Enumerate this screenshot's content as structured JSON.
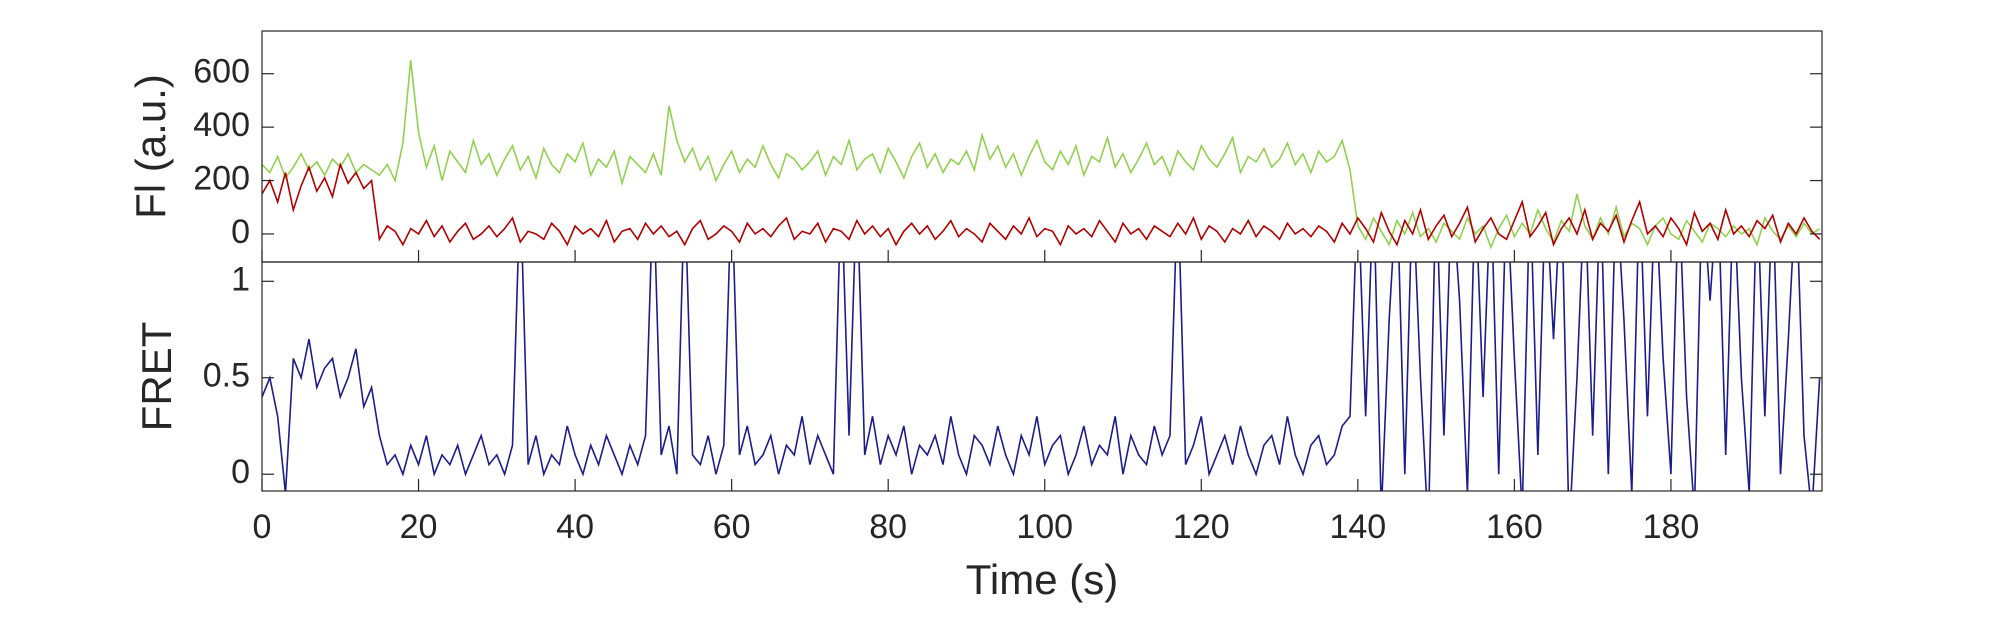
{
  "chart_data": [
    {
      "type": "line",
      "ylabel": "Fl (a.u.)",
      "x": [
        0,
        1,
        2,
        3,
        4,
        5,
        6,
        7,
        8,
        9,
        10,
        11,
        12,
        13,
        14,
        15,
        16,
        17,
        18,
        19,
        20,
        21,
        22,
        23,
        24,
        25,
        26,
        27,
        28,
        29,
        30,
        31,
        32,
        33,
        34,
        35,
        36,
        37,
        38,
        39,
        40,
        41,
        42,
        43,
        44,
        45,
        46,
        47,
        48,
        49,
        50,
        51,
        52,
        53,
        54,
        55,
        56,
        57,
        58,
        59,
        60,
        61,
        62,
        63,
        64,
        65,
        66,
        67,
        68,
        69,
        70,
        71,
        72,
        73,
        74,
        75,
        76,
        77,
        78,
        79,
        80,
        81,
        82,
        83,
        84,
        85,
        86,
        87,
        88,
        89,
        90,
        91,
        92,
        93,
        94,
        95,
        96,
        97,
        98,
        99,
        100,
        101,
        102,
        103,
        104,
        105,
        106,
        107,
        108,
        109,
        110,
        111,
        112,
        113,
        114,
        115,
        116,
        117,
        118,
        119,
        120,
        121,
        122,
        123,
        124,
        125,
        126,
        127,
        128,
        129,
        130,
        131,
        132,
        133,
        134,
        135,
        136,
        137,
        138,
        139,
        140,
        141,
        142,
        143,
        144,
        145,
        146,
        147,
        148,
        149,
        150,
        151,
        152,
        153,
        154,
        155,
        156,
        157,
        158,
        159,
        160,
        161,
        162,
        163,
        164,
        165,
        166,
        167,
        168,
        169,
        170,
        171,
        172,
        173,
        174,
        175,
        176,
        177,
        178,
        179,
        180,
        181,
        182,
        183,
        184,
        185,
        186,
        187,
        188,
        189,
        190,
        191,
        192,
        193,
        194,
        195,
        196,
        197,
        198,
        199
      ],
      "series": [
        {
          "color": "#92d050",
          "values": [
            260,
            230,
            290,
            210,
            250,
            300,
            240,
            270,
            220,
            280,
            250,
            300,
            230,
            260,
            240,
            220,
            260,
            200,
            340,
            650,
            380,
            250,
            330,
            200,
            310,
            270,
            230,
            350,
            260,
            300,
            220,
            280,
            330,
            240,
            290,
            210,
            320,
            260,
            230,
            300,
            270,
            340,
            220,
            280,
            250,
            310,
            190,
            290,
            260,
            230,
            300,
            220,
            480,
            350,
            270,
            320,
            240,
            290,
            200,
            260,
            310,
            230,
            280,
            250,
            330,
            260,
            210,
            300,
            280,
            240,
            270,
            310,
            220,
            290,
            260,
            350,
            240,
            280,
            300,
            230,
            320,
            270,
            210,
            290,
            340,
            250,
            300,
            230,
            280,
            260,
            310,
            240,
            370,
            280,
            330,
            250,
            300,
            220,
            290,
            350,
            270,
            240,
            310,
            260,
            330,
            220,
            290,
            270,
            360,
            250,
            300,
            230,
            280,
            340,
            260,
            290,
            220,
            310,
            270,
            240,
            330,
            280,
            250,
            300,
            360,
            230,
            290,
            270,
            320,
            250,
            280,
            340,
            260,
            300,
            230,
            310,
            270,
            290,
            350,
            240,
            30,
            -20,
            60,
            10,
            -40,
            50,
            0,
            80,
            -10,
            20,
            -30,
            40,
            10,
            -20,
            60,
            0,
            30,
            -50,
            20,
            70,
            -10,
            40,
            0,
            90,
            20,
            -30,
            50,
            10,
            150,
            30,
            -20,
            60,
            0,
            100,
            -10,
            40,
            20,
            -40,
            30,
            60,
            0,
            -20,
            50,
            10,
            -30,
            40,
            20,
            -10,
            30,
            0,
            20,
            -40,
            60,
            10,
            -20,
            30,
            -10,
            40,
            0,
            20
          ]
        },
        {
          "color": "#b00000",
          "values": [
            150,
            200,
            120,
            230,
            90,
            180,
            250,
            160,
            210,
            140,
            260,
            190,
            230,
            170,
            200,
            -20,
            30,
            10,
            -40,
            20,
            0,
            50,
            -10,
            30,
            -30,
            10,
            40,
            -20,
            0,
            30,
            -10,
            20,
            60,
            -30,
            10,
            0,
            -20,
            40,
            10,
            -40,
            30,
            0,
            20,
            -10,
            50,
            -30,
            10,
            20,
            -20,
            40,
            0,
            30,
            -10,
            10,
            -40,
            20,
            50,
            -20,
            0,
            30,
            10,
            -30,
            40,
            0,
            20,
            -10,
            30,
            60,
            -20,
            10,
            0,
            40,
            -30,
            20,
            10,
            -20,
            50,
            0,
            30,
            -10,
            20,
            -40,
            10,
            40,
            0,
            30,
            -20,
            10,
            50,
            -10,
            20,
            0,
            -30,
            40,
            10,
            -20,
            30,
            0,
            60,
            -10,
            20,
            10,
            -40,
            30,
            0,
            20,
            -10,
            50,
            10,
            -30,
            40,
            0,
            20,
            -20,
            30,
            10,
            -10,
            40,
            0,
            60,
            -20,
            30,
            10,
            -30,
            20,
            0,
            50,
            -10,
            30,
            10,
            -20,
            40,
            0,
            20,
            -10,
            30,
            10,
            -30,
            40,
            0,
            60,
            20,
            -30,
            80,
            10,
            -40,
            50,
            0,
            90,
            -20,
            30,
            70,
            -10,
            40,
            100,
            -30,
            20,
            60,
            0,
            -20,
            50,
            120,
            -10,
            30,
            80,
            -40,
            20,
            60,
            0,
            90,
            -20,
            40,
            10,
            70,
            -30,
            50,
            120,
            0,
            30,
            -10,
            60,
            20,
            -40,
            80,
            10,
            40,
            -20,
            90,
            0,
            30,
            -10,
            50,
            20,
            70,
            -30,
            40,
            0,
            60,
            10,
            -20
          ]
        }
      ],
      "xlim": [
        0,
        199.3
      ],
      "ylim": [
        -105,
        760
      ],
      "yticks": [
        0,
        200,
        400,
        600
      ]
    },
    {
      "type": "line",
      "ylabel": "FRET",
      "xlabel": "Time (s)",
      "x": [
        0,
        1,
        2,
        3,
        4,
        5,
        6,
        7,
        8,
        9,
        10,
        11,
        12,
        13,
        14,
        15,
        16,
        17,
        18,
        19,
        20,
        21,
        22,
        23,
        24,
        25,
        26,
        27,
        28,
        29,
        30,
        31,
        32,
        33,
        34,
        35,
        36,
        37,
        38,
        39,
        40,
        41,
        42,
        43,
        44,
        45,
        46,
        47,
        48,
        49,
        50,
        51,
        52,
        53,
        54,
        55,
        56,
        57,
        58,
        59,
        60,
        61,
        62,
        63,
        64,
        65,
        66,
        67,
        68,
        69,
        70,
        71,
        72,
        73,
        74,
        75,
        76,
        77,
        78,
        79,
        80,
        81,
        82,
        83,
        84,
        85,
        86,
        87,
        88,
        89,
        90,
        91,
        92,
        93,
        94,
        95,
        96,
        97,
        98,
        99,
        100,
        101,
        102,
        103,
        104,
        105,
        106,
        107,
        108,
        109,
        110,
        111,
        112,
        113,
        114,
        115,
        116,
        117,
        118,
        119,
        120,
        121,
        122,
        123,
        124,
        125,
        126,
        127,
        128,
        129,
        130,
        131,
        132,
        133,
        134,
        135,
        136,
        137,
        138,
        139,
        140,
        141,
        142,
        143,
        144,
        145,
        146,
        147,
        148,
        149,
        150,
        151,
        152,
        153,
        154,
        155,
        156,
        157,
        158,
        159,
        160,
        161,
        162,
        163,
        164,
        165,
        166,
        167,
        168,
        169,
        170,
        171,
        172,
        173,
        174,
        175,
        176,
        177,
        178,
        179,
        180,
        181,
        182,
        183,
        184,
        185,
        186,
        187,
        188,
        189,
        190,
        191,
        192,
        193,
        194,
        195,
        196,
        197,
        198,
        199
      ],
      "series": [
        {
          "color": "#1c1c8a",
          "values": [
            0.4,
            0.5,
            0.3,
            -0.1,
            0.6,
            0.5,
            0.7,
            0.45,
            0.55,
            0.6,
            0.4,
            0.5,
            0.65,
            0.35,
            0.45,
            0.2,
            0.05,
            0.1,
            0,
            0.15,
            0.05,
            0.2,
            0,
            0.1,
            0.05,
            0.15,
            0,
            0.1,
            0.2,
            0.05,
            0.1,
            0,
            0.15,
            1.5,
            0.05,
            0.2,
            0,
            0.1,
            0.05,
            0.25,
            0.1,
            0,
            0.15,
            0.05,
            0.2,
            0.1,
            0,
            0.15,
            0.05,
            0.2,
            1.5,
            0.1,
            0.25,
            0,
            1.5,
            0.1,
            0.05,
            0.2,
            0,
            0.15,
            1.5,
            0.1,
            0.25,
            0.05,
            0.1,
            0.2,
            0,
            0.15,
            0.1,
            0.3,
            0.05,
            0.2,
            0.1,
            0,
            1.5,
            0.2,
            1.5,
            0.1,
            0.3,
            0.05,
            0.2,
            0.1,
            0.25,
            0,
            0.15,
            0.1,
            0.2,
            0.05,
            0.3,
            0.1,
            0,
            0.2,
            0.15,
            0.05,
            0.25,
            0.1,
            0,
            0.2,
            0.1,
            0.3,
            0.05,
            0.15,
            0.2,
            0,
            0.1,
            0.25,
            0.05,
            0.15,
            0.1,
            0.3,
            0,
            0.2,
            0.1,
            0.05,
            0.25,
            0.1,
            0.2,
            1.5,
            0.05,
            0.15,
            0.3,
            0,
            0.1,
            0.2,
            0.05,
            0.25,
            0.1,
            0,
            0.15,
            0.2,
            0.05,
            0.3,
            0.1,
            0,
            0.15,
            0.2,
            0.05,
            0.1,
            0.25,
            0.3,
            1.5,
            0.3,
            1.5,
            -0.2,
            0.8,
            1.5,
            0,
            1.5,
            0.5,
            -0.3,
            1.5,
            0.2,
            1.5,
            0.9,
            -0.1,
            1.5,
            0.4,
            1.5,
            0,
            1.5,
            0.6,
            -0.2,
            1.5,
            0.1,
            1.5,
            0.7,
            1.5,
            -0.3,
            0.5,
            1.5,
            0.2,
            1.5,
            0,
            1.5,
            0.8,
            -0.1,
            1.5,
            0.3,
            1.5,
            0.6,
            0,
            1.5,
            0.4,
            -0.2,
            1.5,
            0.9,
            1.5,
            0.1,
            1.5,
            0.5,
            -0.1,
            1.5,
            0.3,
            1.5,
            0,
            0.7,
            1.5,
            0.2,
            -0.2,
            0.5
          ]
        }
      ],
      "xlim": [
        0,
        199.3
      ],
      "ylim": [
        -0.087,
        1.1
      ],
      "yticks": [
        0,
        0.5,
        1
      ],
      "xticks": [
        0,
        20,
        40,
        60,
        80,
        100,
        120,
        140,
        160,
        180
      ]
    }
  ]
}
